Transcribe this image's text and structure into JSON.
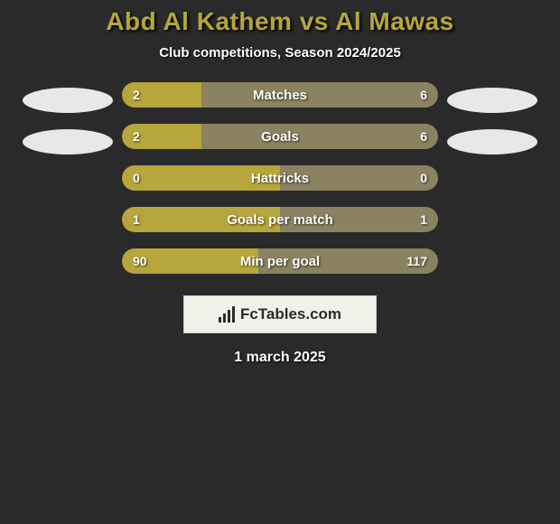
{
  "header": {
    "title": "Abd Al Kathem vs Al Mawas",
    "title_color": "#b6a63b",
    "subtitle": "Club competitions, Season 2024/2025"
  },
  "colors": {
    "bar_left": "#b6a63b",
    "bar_right": "#8a8261",
    "background": "#2a2a2a",
    "ellipse": "#e8e8e8",
    "brand_bg": "#f2f1e9",
    "brand_text": "#2a2a2a"
  },
  "chart": {
    "type": "bar-horizontal-comparison",
    "left_ellipses": 2,
    "right_ellipses": 2,
    "rows": [
      {
        "label": "Matches",
        "left_value": "2",
        "right_value": "6",
        "left_pct": 25,
        "right_pct": 75
      },
      {
        "label": "Goals",
        "left_value": "2",
        "right_value": "6",
        "left_pct": 25,
        "right_pct": 75
      },
      {
        "label": "Hattricks",
        "left_value": "0",
        "right_value": "0",
        "left_pct": 50,
        "right_pct": 50
      },
      {
        "label": "Goals per match",
        "left_value": "1",
        "right_value": "1",
        "left_pct": 50,
        "right_pct": 50
      },
      {
        "label": "Min per goal",
        "left_value": "90",
        "right_value": "117",
        "left_pct": 43,
        "right_pct": 57
      }
    ]
  },
  "brand": {
    "text": "FcTables.com"
  },
  "footer": {
    "date": "1 march 2025"
  }
}
